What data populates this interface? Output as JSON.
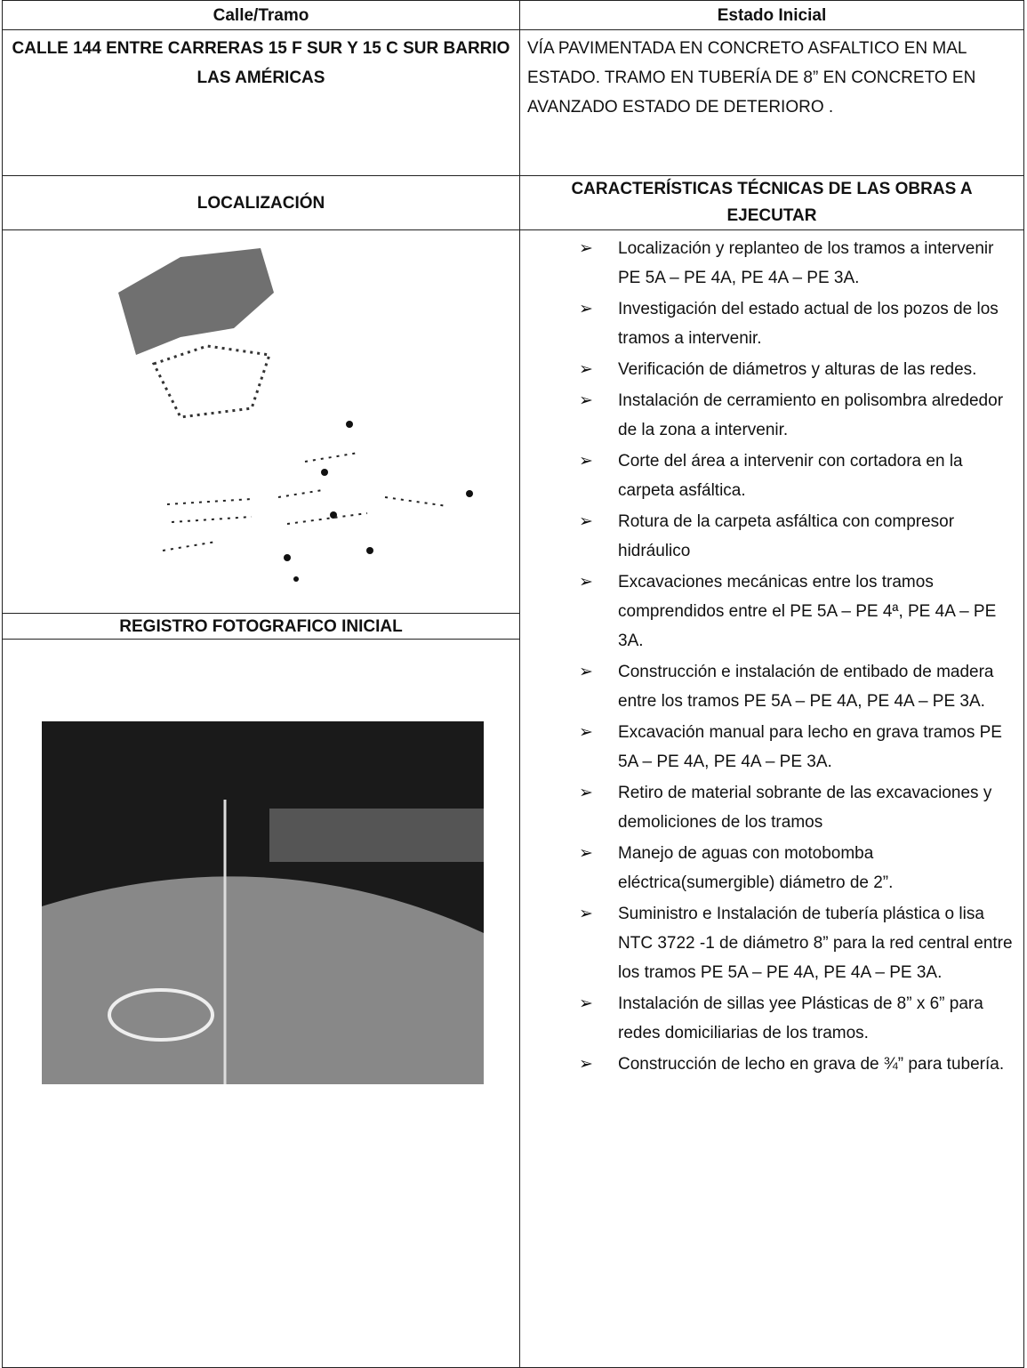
{
  "table": {
    "header": [
      "Calle/Tramo",
      "Estado Inicial"
    ],
    "street": "CALLE 144 ENTRE CARRERAS 15 F SUR Y 15 C SUR BARRIO LAS AMÉRICAS",
    "initial_state": "VÍA PAVIMENTADA EN CONCRETO ASFALTICO EN MAL ESTADO. TRAMO EN TUBERÍA DE 8” EN CONCRETO EN AVANZADO ESTADO DE DETERIORO .",
    "location_title": "LOCALIZACIÓN",
    "features_title": "CARACTERÍSTICAS TÉCNICAS DE LAS OBRAS A EJECUTAR",
    "photo_title": "REGISTRO FOTOGRAFICO INICIAL",
    "features": [
      "Localización y replanteo de los tramos a intervenir PE 5A – PE 4A, PE 4A – PE 3A.",
      "Investigación del estado actual de los pozos de los tramos a intervenir.",
      "Verificación de diámetros y alturas de las redes.",
      "Instalación de cerramiento en polisombra alrededor de la zona a intervenir.",
      "Corte del área a intervenir con cortadora en la carpeta asfáltica.",
      "Rotura de la carpeta asfáltica con compresor hidráulico",
      "Excavaciones mecánicas entre los tramos comprendidos entre el PE 5A – PE 4ª,  PE 4A – PE 3A.",
      "Construcción e instalación de entibado de madera entre los tramos PE 5A – PE 4A, PE 4A – PE 3A.",
      "Excavación manual para lecho en grava tramos PE 5A – PE 4A, PE 4A – PE 3A.",
      "Retiro de material sobrante de las excavaciones y demoliciones de los tramos",
      "Manejo de aguas con motobomba eléctrica(sumergible) diámetro de 2”.",
      "Suministro e Instalación de tubería plástica o lisa NTC 3722 -1 de diámetro 8” para la red central entre los tramos PE 5A – PE 4A, PE 4A – PE 3A.",
      "Instalación de sillas yee Plásticas de 8” x 6” para redes domiciliarias de los tramos.",
      "Construcción de lecho en grava de ¾” para tubería."
    ]
  }
}
